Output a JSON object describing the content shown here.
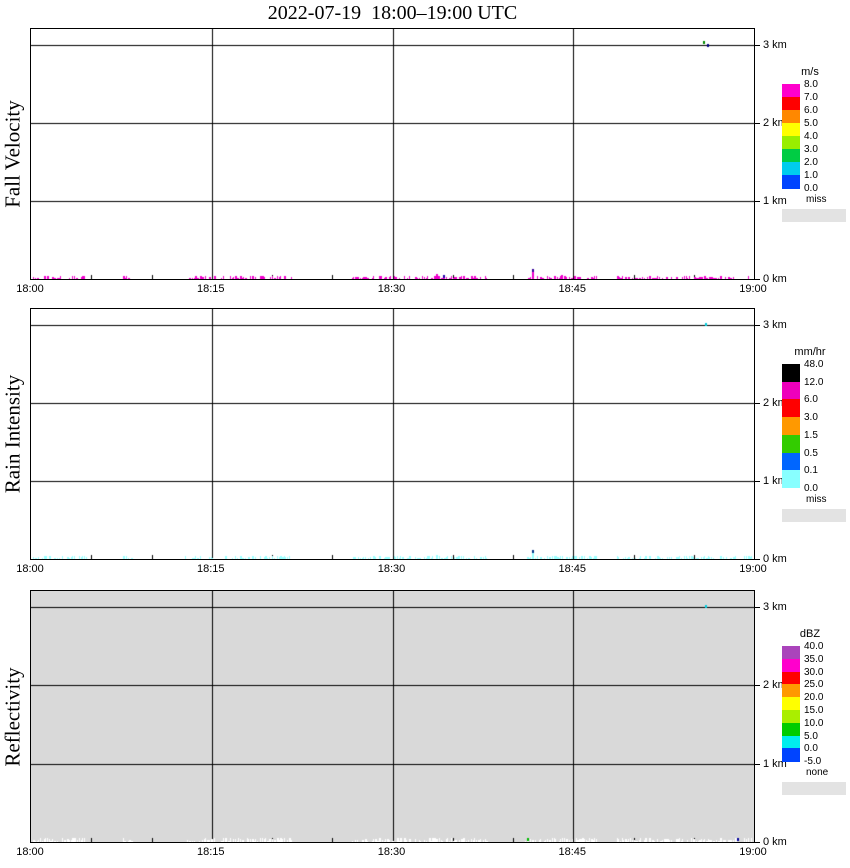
{
  "page": {
    "title": "2022-07-19  18:00–19:00 UTC"
  },
  "chart_data": [
    {
      "type": "heatmap",
      "id": "fall-velocity",
      "title": "Fall Velocity",
      "x_tick_labels": [
        "18:00",
        "18:15",
        "18:30",
        "18:45",
        "19:00"
      ],
      "y_tick_labels": [
        "0 km",
        "1 km",
        "2 km",
        "3 km"
      ],
      "x_range_minutes": [
        0,
        60
      ],
      "y_range_km": [
        0,
        3.2
      ],
      "background": "#ffffff",
      "strip_color": "#ee00cc",
      "strip_density": 0.62,
      "strip_maxh": 3,
      "surface_strips": [
        {
          "t0": 0.2,
          "t1": 4.6
        },
        {
          "t0": 7.6,
          "t1": 8.4
        },
        {
          "t0": 12.8,
          "t1": 15.2
        },
        {
          "t0": 15.8,
          "t1": 21.6
        },
        {
          "t0": 26.6,
          "t1": 31.4
        },
        {
          "t0": 31.9,
          "t1": 37.9
        },
        {
          "t0": 41.0,
          "t1": 46.9
        },
        {
          "t0": 48.6,
          "t1": 53.1
        },
        {
          "t0": 53.5,
          "t1": 58.5
        },
        {
          "t0": 59.2,
          "t1": 59.9
        }
      ],
      "spikes": [
        {
          "t": 41.6,
          "km": 0.1,
          "color": "#ee00cc"
        },
        {
          "t": 33.6,
          "km": 0.06,
          "color": "#ee00cc"
        },
        {
          "t": 44.0,
          "km": 0.05,
          "color": "#ee00cc"
        }
      ],
      "dots": [
        {
          "t": 34.2,
          "km": 0.02,
          "color": "#2200aa"
        },
        {
          "t": 41.6,
          "km": 0.1,
          "color": "#330099"
        },
        {
          "t": 55.8,
          "km": 3.02,
          "color": "#008800"
        },
        {
          "t": 56.1,
          "km": 2.98,
          "color": "#000088"
        }
      ],
      "colorbar": {
        "unit": "m/s",
        "boundary_labels": [
          "8.0",
          "7.0",
          "6.0",
          "5.0",
          "4.0",
          "3.0",
          "2.0",
          "1.0",
          "0.0"
        ],
        "segment_colors": [
          "#ff00cc",
          "#ff0000",
          "#ff8800",
          "#ffff00",
          "#99ee00",
          "#00cc44",
          "#00ccee",
          "#0044ff"
        ],
        "missing_label": "miss",
        "missing_color": "#e3e3e3"
      }
    },
    {
      "type": "heatmap",
      "id": "rain-intensity",
      "title": "Rain Intensity",
      "x_tick_labels": [
        "18:00",
        "18:15",
        "18:30",
        "18:45",
        "19:00"
      ],
      "y_tick_labels": [
        "0 km",
        "1 km",
        "2 km",
        "3 km"
      ],
      "x_range_minutes": [
        0,
        60
      ],
      "y_range_km": [
        0,
        3.2
      ],
      "background": "#ffffff",
      "strip_color": "#99ffff",
      "strip_density": 0.7,
      "strip_maxh": 3,
      "surface_strips": [
        {
          "t0": 0.2,
          "t1": 4.6
        },
        {
          "t0": 7.6,
          "t1": 8.4
        },
        {
          "t0": 12.8,
          "t1": 15.2
        },
        {
          "t0": 15.8,
          "t1": 21.6
        },
        {
          "t0": 26.6,
          "t1": 31.4
        },
        {
          "t0": 31.9,
          "t1": 37.9
        },
        {
          "t0": 41.0,
          "t1": 46.9
        },
        {
          "t0": 48.6,
          "t1": 53.1
        },
        {
          "t0": 53.5,
          "t1": 58.5
        },
        {
          "t0": 59.2,
          "t1": 59.9
        }
      ],
      "spikes": [
        {
          "t": 41.6,
          "km": 0.09,
          "color": "#99ffff"
        },
        {
          "t": 33.6,
          "km": 0.05,
          "color": "#99ffff"
        }
      ],
      "dots": [
        {
          "t": 41.6,
          "km": 0.09,
          "color": "#003388"
        },
        {
          "t": 55.9,
          "km": 3.0,
          "color": "#00ccdd"
        }
      ],
      "colorbar": {
        "unit": "mm/hr",
        "boundary_labels": [
          "48.0",
          "12.0",
          "6.0",
          "3.0",
          "1.5",
          "0.5",
          "0.1",
          "0.0"
        ],
        "segment_colors": [
          "#000000",
          "#ee00bb",
          "#ff0000",
          "#ff9900",
          "#33cc00",
          "#0066ff",
          "#88ffff"
        ],
        "missing_label": "miss",
        "missing_color": "#e3e3e3"
      }
    },
    {
      "type": "heatmap",
      "id": "reflectivity",
      "title": "Reflectivity",
      "x_tick_labels": [
        "18:00",
        "18:15",
        "18:30",
        "18:45",
        "19:00"
      ],
      "y_tick_labels": [
        "0 km",
        "1 km",
        "2 km",
        "3 km"
      ],
      "x_range_minutes": [
        0,
        60
      ],
      "y_range_km": [
        0,
        3.2
      ],
      "background": "#d9d9d9",
      "strip_color": "#ffffff",
      "strip_density": 0.8,
      "strip_maxh": 4,
      "surface_strips": [
        {
          "t0": 0.2,
          "t1": 4.6
        },
        {
          "t0": 7.6,
          "t1": 8.4
        },
        {
          "t0": 12.8,
          "t1": 15.2
        },
        {
          "t0": 15.8,
          "t1": 21.6
        },
        {
          "t0": 26.6,
          "t1": 31.4
        },
        {
          "t0": 31.9,
          "t1": 37.9
        },
        {
          "t0": 41.0,
          "t1": 46.9
        },
        {
          "t0": 48.6,
          "t1": 53.1
        },
        {
          "t0": 53.5,
          "t1": 58.5
        },
        {
          "t0": 59.2,
          "t1": 59.9
        }
      ],
      "spikes": [],
      "dots": [
        {
          "t": 41.2,
          "km": 0.03,
          "color": "#00bb00"
        },
        {
          "t": 58.6,
          "km": 0.03,
          "color": "#000099"
        },
        {
          "t": 55.9,
          "km": 3.0,
          "color": "#00ccdd"
        }
      ],
      "colorbar": {
        "unit": "dBZ",
        "boundary_labels": [
          "40.0",
          "35.0",
          "30.0",
          "25.0",
          "20.0",
          "15.0",
          "10.0",
          "5.0",
          "0.0",
          "-5.0"
        ],
        "segment_colors": [
          "#aa44bb",
          "#ff00cc",
          "#ff0000",
          "#ff9900",
          "#ffff00",
          "#aaee00",
          "#00cc00",
          "#00eeee",
          "#0044ff"
        ],
        "missing_label": "none",
        "missing_color": "#e3e3e3"
      }
    }
  ]
}
